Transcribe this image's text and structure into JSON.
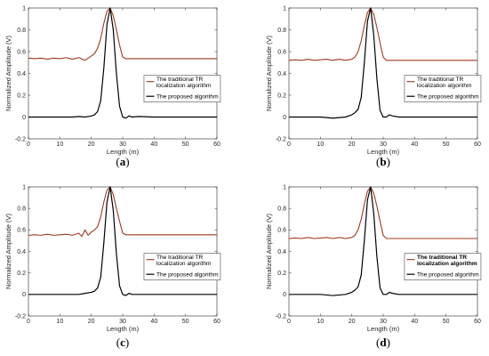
{
  "figure": {
    "panels": [
      {
        "label": "(a)",
        "legend_bold": false
      },
      {
        "label": "(b)",
        "legend_bold": false
      },
      {
        "label": "(c)",
        "legend_bold": false
      },
      {
        "label": "(d)",
        "legend_bold": true
      }
    ]
  },
  "chart_data": [
    {
      "type": "line",
      "panel": "(a)",
      "xlabel": "Length (m)",
      "ylabel": "Normalized Amplitude (V)",
      "xlim": [
        0,
        60
      ],
      "ylim": [
        -0.2,
        1
      ],
      "xticks": [
        "0",
        "10",
        "20",
        "30",
        "40",
        "50",
        "60"
      ],
      "yticks": [
        "-0.2",
        "0",
        "0.2",
        "0.4",
        "0.6",
        "0.8",
        "1"
      ],
      "grid": false,
      "legend_position": "right-middle",
      "series": [
        {
          "name": "The traditional TR localization algorithm",
          "color": "#a0391f",
          "x": [
            0,
            2,
            4,
            6,
            8,
            10,
            12,
            14,
            16,
            18,
            20,
            21,
            22,
            23,
            24,
            25,
            26,
            27,
            28,
            29,
            30,
            31,
            35,
            40,
            45,
            50,
            55,
            60
          ],
          "y": [
            0.54,
            0.535,
            0.54,
            0.53,
            0.54,
            0.535,
            0.545,
            0.53,
            0.545,
            0.52,
            0.56,
            0.58,
            0.63,
            0.72,
            0.86,
            0.97,
            1.0,
            0.93,
            0.8,
            0.66,
            0.55,
            0.535,
            0.535,
            0.535,
            0.535,
            0.535,
            0.535,
            0.535
          ]
        },
        {
          "name": "The proposed algorithm",
          "color": "#000000",
          "x": [
            0,
            5,
            10,
            14,
            16,
            18,
            20,
            21,
            22,
            23,
            24,
            25,
            26,
            27,
            28,
            29,
            30,
            31,
            32,
            33,
            35,
            40,
            45,
            50,
            55,
            60
          ],
          "y": [
            0.0,
            0.0,
            0.0,
            0.0,
            0.005,
            0.0,
            0.01,
            0.02,
            0.05,
            0.15,
            0.45,
            0.85,
            1.0,
            0.8,
            0.4,
            0.1,
            0.0,
            -0.01,
            0.01,
            0.0,
            0.005,
            0.0,
            0.0,
            0.0,
            0.0,
            0.0
          ]
        }
      ]
    },
    {
      "type": "line",
      "panel": "(b)",
      "xlabel": "Length (m)",
      "ylabel": "Normalized Amplitude (V)",
      "xlim": [
        0,
        60
      ],
      "ylim": [
        -0.2,
        1
      ],
      "xticks": [
        "0",
        "10",
        "20",
        "30",
        "40",
        "50",
        "60"
      ],
      "yticks": [
        "-0.2",
        "0",
        "0.2",
        "0.4",
        "0.6",
        "0.8",
        "1"
      ],
      "grid": false,
      "legend_position": "right-middle",
      "series": [
        {
          "name": "The traditional TR localization algorithm",
          "color": "#a0391f",
          "x": [
            0,
            2,
            4,
            6,
            8,
            10,
            12,
            14,
            16,
            18,
            20,
            21,
            22,
            23,
            24,
            25,
            26,
            27,
            28,
            29,
            30,
            31,
            35,
            40,
            45,
            50,
            55,
            60
          ],
          "y": [
            0.52,
            0.525,
            0.52,
            0.53,
            0.52,
            0.525,
            0.53,
            0.52,
            0.53,
            0.52,
            0.53,
            0.55,
            0.6,
            0.7,
            0.84,
            0.96,
            1.0,
            0.94,
            0.82,
            0.68,
            0.55,
            0.52,
            0.52,
            0.52,
            0.52,
            0.52,
            0.52,
            0.52
          ]
        },
        {
          "name": "The proposed algorithm",
          "color": "#000000",
          "x": [
            0,
            5,
            10,
            14,
            16,
            18,
            20,
            21,
            22,
            23,
            24,
            25,
            26,
            27,
            28,
            29,
            30,
            31,
            32,
            33,
            35,
            40,
            45,
            50,
            55,
            60
          ],
          "y": [
            0.0,
            0.0,
            0.0,
            -0.01,
            -0.005,
            0.0,
            0.02,
            0.04,
            0.07,
            0.18,
            0.5,
            0.88,
            1.0,
            0.75,
            0.35,
            0.06,
            0.0,
            0.0,
            0.02,
            0.01,
            0.0,
            0.0,
            0.0,
            0.0,
            0.0,
            0.0
          ]
        }
      ]
    },
    {
      "type": "line",
      "panel": "(c)",
      "xlabel": "Length (m)",
      "ylabel": "Normalized Amplitude (V)",
      "xlim": [
        0,
        60
      ],
      "ylim": [
        -0.2,
        1
      ],
      "xticks": [
        "0",
        "10",
        "20",
        "30",
        "40",
        "50",
        "60"
      ],
      "yticks": [
        "-0.2",
        "0",
        "0.2",
        "0.4",
        "0.6",
        "0.8",
        "1"
      ],
      "grid": false,
      "legend_position": "right-middle",
      "series": [
        {
          "name": "The traditional TR localization algorithm",
          "color": "#a0391f",
          "x": [
            0,
            2,
            4,
            6,
            8,
            10,
            12,
            14,
            16,
            17,
            18,
            19,
            20,
            21,
            22,
            23,
            24,
            25,
            26,
            27,
            28,
            29,
            30,
            31,
            35,
            40,
            45,
            50,
            55,
            60
          ],
          "y": [
            0.55,
            0.555,
            0.55,
            0.56,
            0.55,
            0.555,
            0.56,
            0.55,
            0.57,
            0.54,
            0.6,
            0.55,
            0.58,
            0.6,
            0.63,
            0.72,
            0.86,
            0.97,
            1.0,
            0.93,
            0.8,
            0.68,
            0.57,
            0.555,
            0.555,
            0.555,
            0.555,
            0.555,
            0.555,
            0.555
          ]
        },
        {
          "name": "The proposed algorithm",
          "color": "#000000",
          "x": [
            0,
            5,
            10,
            14,
            16,
            18,
            20,
            21,
            22,
            23,
            24,
            25,
            26,
            27,
            28,
            29,
            30,
            31,
            32,
            33,
            35,
            40,
            45,
            50,
            55,
            60
          ],
          "y": [
            0.0,
            0.0,
            0.0,
            0.0,
            0.0,
            0.01,
            0.02,
            0.03,
            0.06,
            0.16,
            0.48,
            0.86,
            1.0,
            0.78,
            0.38,
            0.08,
            0.0,
            -0.01,
            0.01,
            0.0,
            0.0,
            0.0,
            0.0,
            0.0,
            0.0,
            0.0
          ]
        }
      ]
    },
    {
      "type": "line",
      "panel": "(d)",
      "xlabel": "Length (m)",
      "ylabel": "Normalized Amplitude (V)",
      "xlim": [
        0,
        60
      ],
      "ylim": [
        -0.2,
        1
      ],
      "xticks": [
        "0",
        "10",
        "20",
        "30",
        "40",
        "50",
        "60"
      ],
      "yticks": [
        "-0.2",
        "0",
        "0.2",
        "0.4",
        "0.6",
        "0.8",
        "1"
      ],
      "grid": false,
      "legend_position": "right-middle",
      "series": [
        {
          "name": "The traditional TR localization algorithm",
          "color": "#a0391f",
          "x": [
            0,
            2,
            4,
            6,
            8,
            10,
            12,
            14,
            16,
            18,
            20,
            21,
            22,
            23,
            24,
            25,
            26,
            27,
            28,
            29,
            30,
            31,
            35,
            40,
            45,
            50,
            55,
            60
          ],
          "y": [
            0.52,
            0.525,
            0.52,
            0.53,
            0.52,
            0.525,
            0.53,
            0.52,
            0.53,
            0.52,
            0.53,
            0.55,
            0.6,
            0.7,
            0.84,
            0.96,
            1.0,
            0.94,
            0.82,
            0.68,
            0.55,
            0.52,
            0.52,
            0.52,
            0.52,
            0.52,
            0.52,
            0.52
          ]
        },
        {
          "name": "The proposed algorithm",
          "color": "#000000",
          "x": [
            0,
            5,
            10,
            14,
            16,
            18,
            20,
            21,
            22,
            23,
            24,
            25,
            26,
            27,
            28,
            29,
            30,
            31,
            32,
            33,
            35,
            40,
            45,
            50,
            55,
            60
          ],
          "y": [
            0.0,
            0.0,
            0.0,
            -0.01,
            -0.005,
            0.0,
            0.02,
            0.04,
            0.07,
            0.18,
            0.5,
            0.88,
            1.0,
            0.75,
            0.35,
            0.06,
            0.0,
            0.0,
            0.02,
            0.01,
            0.0,
            0.0,
            0.0,
            0.0,
            0.0,
            0.0
          ]
        }
      ]
    }
  ]
}
